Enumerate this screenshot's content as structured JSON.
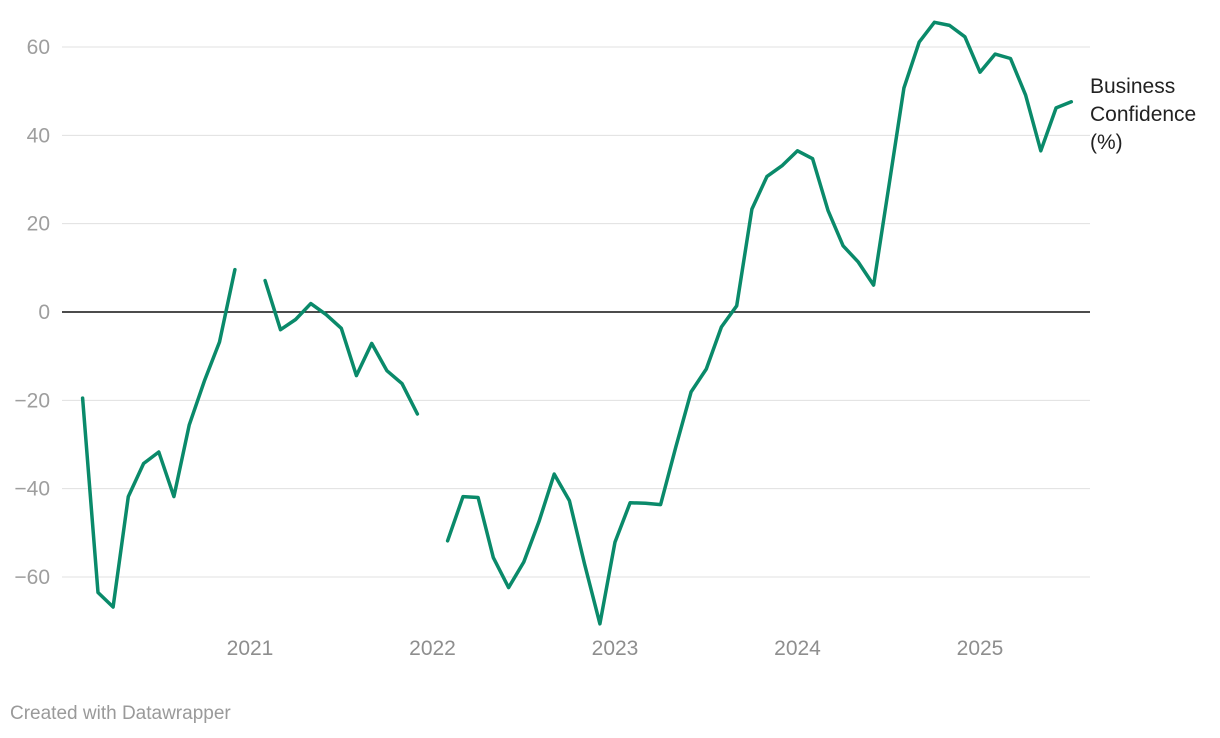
{
  "chart_data": {
    "type": "line",
    "title": "",
    "xlabel": "",
    "ylabel": "",
    "ylim": [
      -70,
      65
    ],
    "yticks": [
      -60,
      -40,
      -20,
      0,
      20,
      40,
      60
    ],
    "ytick_labels": [
      "−60",
      "−40",
      "−20",
      "0",
      "20",
      "40",
      "60"
    ],
    "xticks": [
      2021,
      2022,
      2023,
      2024,
      2025
    ],
    "xtick_labels": [
      "2021",
      "2022",
      "2023",
      "2024",
      "2025"
    ],
    "grid": true,
    "zero_line": true,
    "colors": {
      "series": "#0a8a6a",
      "zero_line": "#111111",
      "grid": "#e0e0e0"
    },
    "series": [
      {
        "name": "Business Confidence (%)",
        "label_lines": [
          "Business",
          "Confidence",
          "(%)"
        ],
        "segments": [
          {
            "x": [
              2020.083,
              2020.167,
              2020.25,
              2020.333,
              2020.417,
              2020.5,
              2020.583,
              2020.667,
              2020.75,
              2020.833,
              2020.917,
              2021.0
            ],
            "y": [
              -19.5,
              -63.5,
              -66.8,
              -41.8,
              -34.3,
              -31.7,
              -41.8,
              -25.6,
              -15.6,
              -6.8,
              9.6,
              null
            ]
          },
          {
            "x": [
              2021.083,
              2021.167,
              2021.25,
              2021.333,
              2021.417,
              2021.5,
              2021.583,
              2021.667,
              2021.75,
              2021.833,
              2021.917
            ],
            "y": [
              7.1,
              -4.0,
              -1.7,
              1.9,
              -0.6,
              -3.7,
              -14.4,
              -7.1,
              -13.3,
              -16.2,
              -23.1
            ]
          },
          {
            "x": [
              2022.083,
              2022.167,
              2022.25,
              2022.333,
              2022.417,
              2022.5,
              2022.583,
              2022.667,
              2022.75,
              2022.833,
              2022.917,
              2023.0,
              2023.083,
              2023.167,
              2023.25,
              2023.333,
              2023.417,
              2023.5,
              2023.583,
              2023.667,
              2023.75,
              2023.833,
              2023.917,
              2024.0,
              2024.083,
              2024.167,
              2024.25,
              2024.333,
              2024.417,
              2024.5,
              2024.583,
              2024.667,
              2024.75,
              2024.833,
              2024.917,
              2025.0,
              2025.083,
              2025.167,
              2025.25,
              2025.333,
              2025.417,
              2025.5
            ],
            "y": [
              -51.8,
              -41.8,
              -42.0,
              -55.6,
              -62.4,
              -56.6,
              -47.5,
              -36.7,
              -42.7,
              -57.0,
              -70.6,
              -52.1,
              -43.2,
              -43.3,
              -43.6,
              -30.6,
              -18.1,
              -12.9,
              -3.4,
              1.4,
              23.3,
              30.7,
              33.2,
              36.5,
              34.7,
              23.0,
              15.0,
              11.3,
              6.1,
              28.4,
              50.7,
              61.1,
              65.6,
              64.9,
              62.3,
              54.3,
              58.4,
              57.4,
              49.1,
              36.5,
              46.2,
              47.6
            ]
          }
        ]
      }
    ]
  },
  "footer": "Created with Datawrapper"
}
